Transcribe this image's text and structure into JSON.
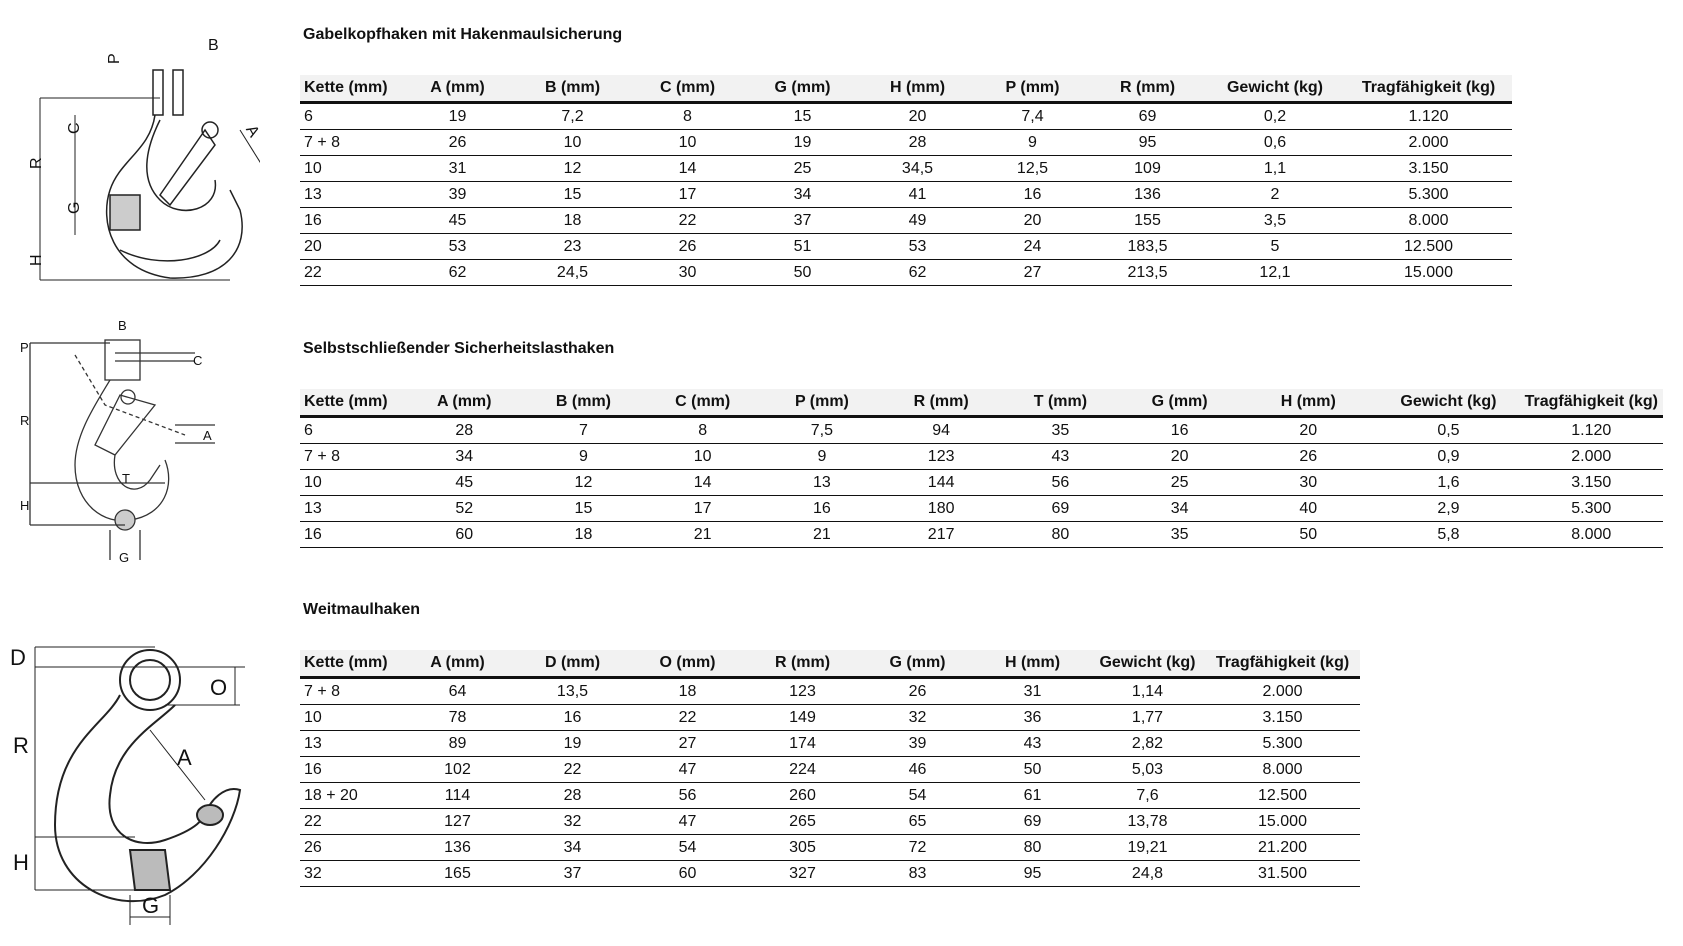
{
  "sections": [
    {
      "title": "Gabelkopfhaken mit Hakenmaulsicherung",
      "diagram_labels": [
        "B",
        "P",
        "C",
        "R",
        "G",
        "H",
        "A"
      ],
      "headers": [
        "Kette (mm)",
        "A (mm)",
        "B (mm)",
        "C (mm)",
        "G (mm)",
        "H (mm)",
        "P (mm)",
        "R (mm)",
        "Gewicht (kg)",
        "Tragfähigkeit (kg)"
      ],
      "rows": [
        [
          "6",
          "19",
          "7,2",
          "8",
          "15",
          "20",
          "7,4",
          "69",
          "0,2",
          "1.120"
        ],
        [
          "7 + 8",
          "26",
          "10",
          "10",
          "19",
          "28",
          "9",
          "95",
          "0,6",
          "2.000"
        ],
        [
          "10",
          "31",
          "12",
          "14",
          "25",
          "34,5",
          "12,5",
          "109",
          "1,1",
          "3.150"
        ],
        [
          "13",
          "39",
          "15",
          "17",
          "34",
          "41",
          "16",
          "136",
          "2",
          "5.300"
        ],
        [
          "16",
          "45",
          "18",
          "22",
          "37",
          "49",
          "20",
          "155",
          "3,5",
          "8.000"
        ],
        [
          "20",
          "53",
          "23",
          "26",
          "51",
          "53",
          "24",
          "183,5",
          "5",
          "12.500"
        ],
        [
          "22",
          "62",
          "24,5",
          "30",
          "50",
          "62",
          "27",
          "213,5",
          "12,1",
          "15.000"
        ]
      ]
    },
    {
      "title": "Selbstschließender Sicherheitslasthaken",
      "diagram_labels": [
        "B",
        "P",
        "C",
        "R",
        "A",
        "T",
        "H",
        "G"
      ],
      "headers": [
        "Kette (mm)",
        "A (mm)",
        "B (mm)",
        "C (mm)",
        "P (mm)",
        "R (mm)",
        "T (mm)",
        "G (mm)",
        "H (mm)",
        "Gewicht (kg)",
        "Tragfähigkeit (kg)"
      ],
      "rows": [
        [
          "6",
          "28",
          "7",
          "8",
          "7,5",
          "94",
          "35",
          "16",
          "20",
          "0,5",
          "1.120"
        ],
        [
          "7 + 8",
          "34",
          "9",
          "10",
          "9",
          "123",
          "43",
          "20",
          "26",
          "0,9",
          "2.000"
        ],
        [
          "10",
          "45",
          "12",
          "14",
          "13",
          "144",
          "56",
          "25",
          "30",
          "1,6",
          "3.150"
        ],
        [
          "13",
          "52",
          "15",
          "17",
          "16",
          "180",
          "69",
          "34",
          "40",
          "2,9",
          "5.300"
        ],
        [
          "16",
          "60",
          "18",
          "21",
          "21",
          "217",
          "80",
          "35",
          "50",
          "5,8",
          "8.000"
        ]
      ]
    },
    {
      "title": "Weitmaulhaken",
      "diagram_labels": [
        "D",
        "O",
        "R",
        "A",
        "H",
        "G"
      ],
      "headers": [
        "Kette (mm)",
        "A (mm)",
        "D (mm)",
        "O (mm)",
        "R (mm)",
        "G (mm)",
        "H (mm)",
        "Gewicht (kg)",
        "Tragfähigkeit (kg)"
      ],
      "rows": [
        [
          "7 + 8",
          "64",
          "13,5",
          "18",
          "123",
          "26",
          "31",
          "1,14",
          "2.000"
        ],
        [
          "10",
          "78",
          "16",
          "22",
          "149",
          "32",
          "36",
          "1,77",
          "3.150"
        ],
        [
          "13",
          "89",
          "19",
          "27",
          "174",
          "39",
          "43",
          "2,82",
          "5.300"
        ],
        [
          "16",
          "102",
          "22",
          "47",
          "224",
          "46",
          "50",
          "5,03",
          "8.000"
        ],
        [
          "18 + 20",
          "114",
          "28",
          "56",
          "260",
          "54",
          "61",
          "7,6",
          "12.500"
        ],
        [
          "22",
          "127",
          "32",
          "47",
          "265",
          "65",
          "69",
          "13,78",
          "15.000"
        ],
        [
          "26",
          "136",
          "34",
          "54",
          "305",
          "72",
          "80",
          "19,21",
          "21.200"
        ],
        [
          "32",
          "165",
          "37",
          "60",
          "327",
          "83",
          "95",
          "24,8",
          "31.500"
        ]
      ]
    }
  ]
}
